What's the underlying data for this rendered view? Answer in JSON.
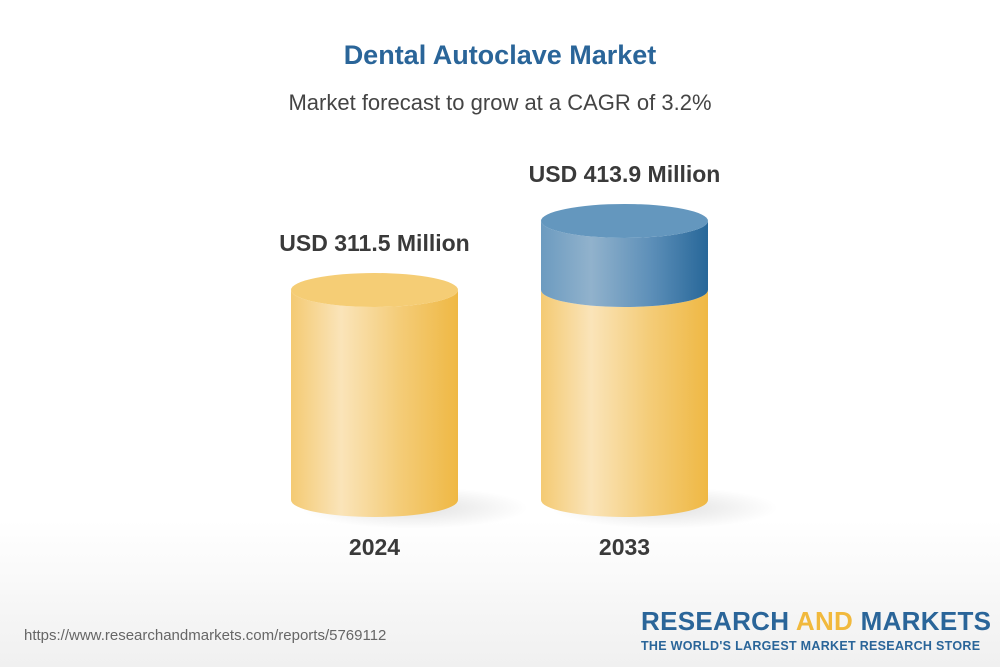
{
  "chart_data": {
    "type": "bar",
    "title": "Dental Autoclave Market",
    "subtitle": "Market forecast to grow at a CAGR of 3.2%",
    "categories": [
      "2024",
      "2033"
    ],
    "values": [
      311.5,
      413.9
    ],
    "data_labels": [
      "USD 311.5 Million",
      "USD 413.9 Million"
    ],
    "unit": "USD Million",
    "style": "3d-cylinder",
    "colors": {
      "base": "#f1b93d",
      "growth": "#2a6599",
      "title": "#2a6599"
    }
  },
  "footer": {
    "url": "https://www.researchandmarkets.com/reports/5769112",
    "logo_word1": "RESEARCH",
    "logo_word2": "AND",
    "logo_word3": "MARKETS",
    "logo_tagline": "THE WORLD'S LARGEST MARKET RESEARCH STORE"
  }
}
